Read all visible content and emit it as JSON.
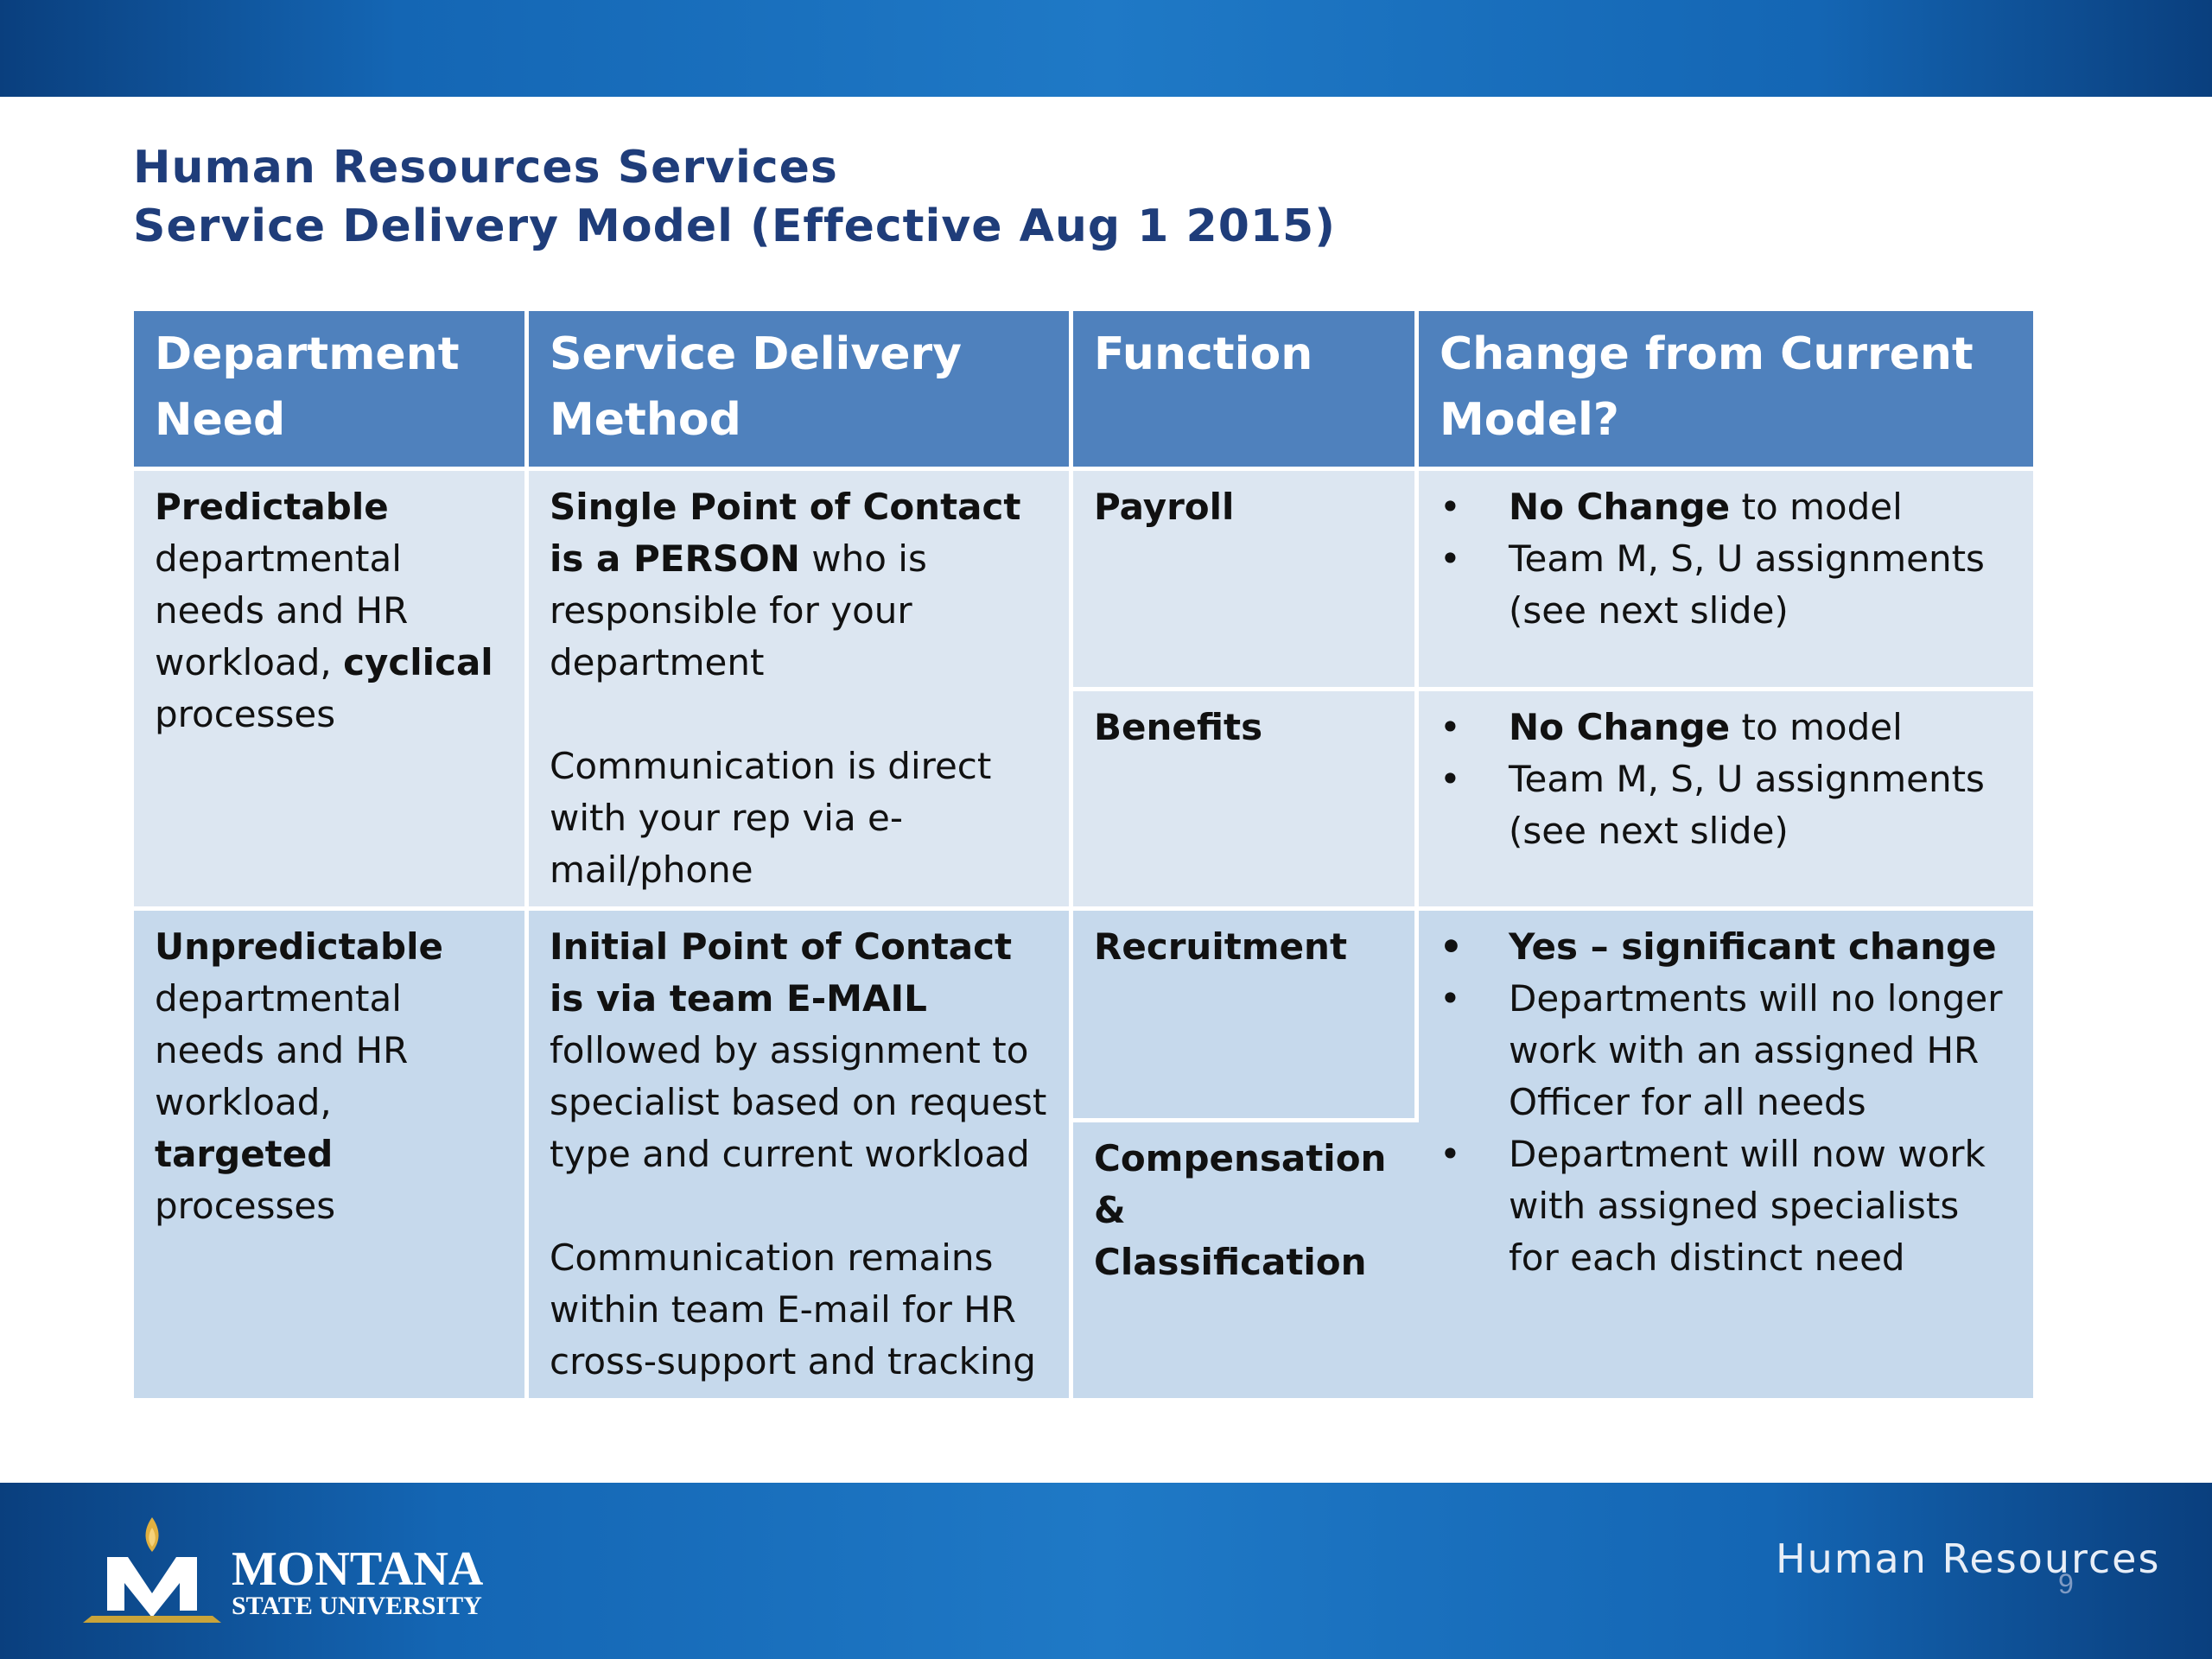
{
  "title": {
    "line1": "Human Resources Services",
    "line2": "Service Delivery Model (Effective Aug 1 2015)"
  },
  "table": {
    "headers": {
      "col1": "Department Need",
      "col2": "Service Delivery Method",
      "col3": "Function",
      "col4": "Change from Current Model?"
    },
    "row1": {
      "need_bold": "Predictable",
      "need_text": "departmental needs and HR workload,",
      "need_bold2": "cyclical",
      "need_text2": " processes",
      "method_p1_bold": "Single Point of Contact is a PERSON",
      "method_p1_text": " who is responsible for your department",
      "method_p2": "Communication is direct with your rep via e-mail/phone",
      "functions": [
        {
          "name": "Payroll",
          "change_bold": "No Change",
          "change_text": " to model",
          "assign": "Team M, S, U assignments (see next slide)"
        },
        {
          "name": "Benefits",
          "change_bold": "No Change",
          "change_text": " to model",
          "assign": "Team M, S, U assignments (see next slide)"
        }
      ]
    },
    "row2": {
      "need_bold": "Unpredictable",
      "need_text": "departmental needs and HR workload,",
      "need_bold2": "targeted",
      "need_text2": " processes",
      "method_p1_bold": "Initial Point of Contact is via team E-MAIL",
      "method_p1_text": " followed by assignment to specialist based on request type and current workload",
      "method_p2": "Communication remains within team E-mail for HR cross-support and tracking",
      "functions": [
        {
          "name": "Recruitment"
        },
        {
          "name": "Compensation & Classification"
        }
      ],
      "changes": [
        "Yes – significant change",
        "Departments will no longer work with an assigned HR Officer for all needs",
        "Department will now work with assigned specialists for each distinct need"
      ]
    }
  },
  "footer": {
    "logo_main": "MONTANA",
    "logo_sub": "STATE UNIVERSITY",
    "brand": "Human Resources",
    "page_number": "9"
  },
  "colors": {
    "header_bg": "#4f81bd",
    "row1_bg": "#dce6f1",
    "row2_bg": "#c6d9ec",
    "title_color": "#1f3d7a",
    "bar_blue": "#1466b4"
  }
}
